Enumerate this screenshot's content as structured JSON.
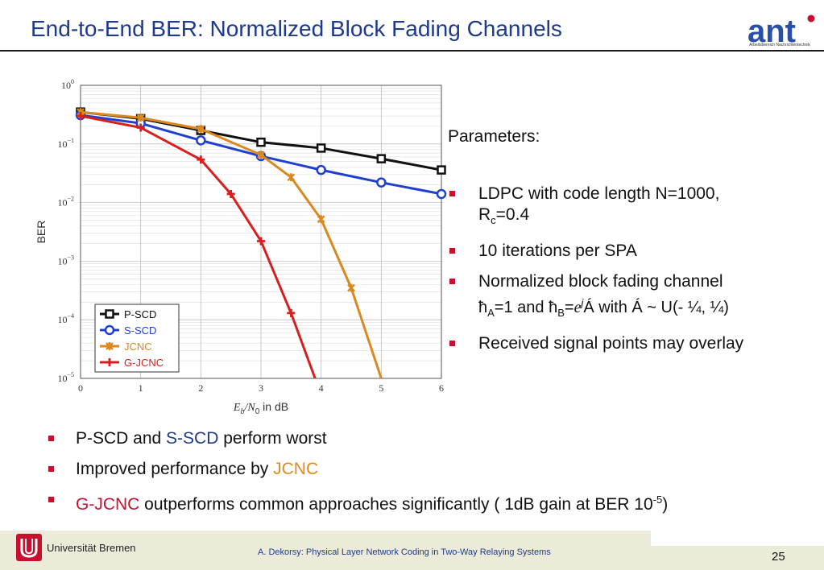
{
  "slide": {
    "title": "End-to-End BER: Normalized Block Fading Channels",
    "logo_text": "ant",
    "logo_subtitle": "Arbeitsbereich Nachrichtentechnik",
    "params_heading": "Parameters:",
    "params": {
      "p1_a": "LDPC with code length N=1000,",
      "p1_b": "R",
      "p1_sub": "c",
      "p1_c": "=0.4",
      "p2": "10 iterations per SPA",
      "p3": "Normalized block fading channel",
      "p4_h1": "ћ",
      "p4_sub1": "A",
      "p4_mid": "=1 and ",
      "p4_h2": "ћ",
      "p4_sub2": "B",
      "p4_eq": "=",
      "p4_e": "e",
      "p4_sup": "j",
      "p4_phi": "Á",
      "p4_tail": " with Á ~ U(- ¼, ¼)",
      "p5": "Received signal points may overlay"
    },
    "bullets": {
      "b1_a": "P-SCD and ",
      "b1_b": "S-SCD",
      "b1_c": " perform worst",
      "b2_a": "Improved performance by ",
      "b2_b": "JCNC",
      "b3_a": "G-JCNC",
      "b3_b": " outperforms common approaches significantly ( 1dB gain at BER 10",
      "b3_sup": "-5",
      "b3_c": ")"
    },
    "footer": {
      "university": "Universität Bremen",
      "citation": "A. Dekorsy: Physical Layer Network Coding in Two-Way Relaying Systems",
      "page": "25"
    }
  },
  "chart_data": {
    "type": "line",
    "xlabel_math": "E",
    "xlabel_sub": "b",
    "xlabel_slash": "/N",
    "xlabel_sub2": "0",
    "xlabel_rest": " in dB",
    "ylabel": "BER",
    "y_scale": "log",
    "xlim": [
      0,
      6
    ],
    "ylim": [
      1e-05,
      1
    ],
    "x_ticks": [
      "0",
      "1",
      "2",
      "3",
      "4",
      "5",
      "6"
    ],
    "y_ticks": [
      {
        "base": "10",
        "exp": "0"
      },
      {
        "base": "10",
        "exp": "−1"
      },
      {
        "base": "10",
        "exp": "−2"
      },
      {
        "base": "10",
        "exp": "−3"
      },
      {
        "base": "10",
        "exp": "−4"
      },
      {
        "base": "10",
        "exp": "−5"
      }
    ],
    "grid": true,
    "legend_position": "bottom-left",
    "series": [
      {
        "name": "P-SCD",
        "color": "#111111",
        "marker": "square",
        "x": [
          0,
          1,
          2,
          3,
          4,
          5,
          6
        ],
        "y": [
          0.35,
          0.27,
          0.17,
          0.107,
          0.085,
          0.056,
          0.036
        ]
      },
      {
        "name": "S-SCD",
        "color": "#1f3fd0",
        "marker": "circle",
        "x": [
          0,
          1,
          2,
          3,
          4,
          5,
          6
        ],
        "y": [
          0.31,
          0.225,
          0.115,
          0.062,
          0.036,
          0.022,
          0.014
        ]
      },
      {
        "name": "JCNC",
        "color": "#d9891f",
        "marker": "star",
        "x": [
          0,
          1,
          2,
          3,
          3.5,
          4,
          4.5,
          5
        ],
        "y": [
          0.35,
          0.28,
          0.18,
          0.065,
          0.027,
          0.0052,
          0.00035,
          1e-05
        ]
      },
      {
        "name": "G-JCNC",
        "color": "#d61f1f",
        "marker": "plus",
        "x": [
          0,
          1,
          2,
          2.5,
          3,
          3.5,
          3.9
        ],
        "y": [
          0.3,
          0.19,
          0.054,
          0.014,
          0.0022,
          0.00013,
          1e-05
        ]
      }
    ]
  }
}
